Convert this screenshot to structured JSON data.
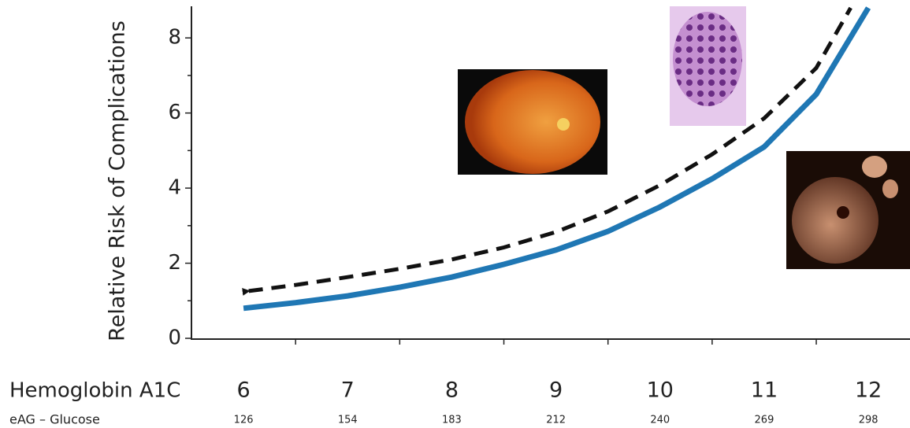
{
  "chart_data": {
    "type": "line",
    "y_label": "Relative Risk of Complications",
    "x_label": "Hemoglobin A1C",
    "xlim": [
      5.5,
      12.4
    ],
    "ylim": [
      0,
      8.8
    ],
    "xticks": [
      6,
      7,
      8,
      9,
      10,
      11,
      12
    ],
    "xminorticks": [
      6.5,
      7.5,
      8.5,
      9.5,
      10.5,
      11.5
    ],
    "yticks": [
      0,
      2,
      4,
      6,
      8
    ],
    "yminorticks": [
      1,
      3,
      5,
      7
    ],
    "secondary_labels": {
      "title": "eAG – Glucose",
      "values": [
        126,
        154,
        183,
        212,
        240,
        269,
        298
      ]
    },
    "series": [
      {
        "color": "#1f77b4",
        "style": "solid",
        "x": [
          6,
          6.5,
          7,
          7.5,
          8,
          8.5,
          9,
          9.5,
          10,
          10.5,
          11,
          11.5,
          12
        ],
        "values": [
          0.8,
          0.95,
          1.13,
          1.36,
          1.63,
          1.97,
          2.35,
          2.85,
          3.5,
          4.25,
          5.1,
          6.5,
          8.8
        ]
      },
      {
        "color": "#111111",
        "style": "dashed",
        "x": [
          6.05,
          6.5,
          7,
          7.5,
          8,
          8.5,
          9,
          9.5,
          10,
          10.5,
          11,
          11.5,
          11.83
        ],
        "values": [
          1.26,
          1.42,
          1.63,
          1.85,
          2.1,
          2.42,
          2.83,
          3.38,
          4.08,
          4.9,
          5.86,
          7.2,
          8.8
        ]
      }
    ]
  }
}
